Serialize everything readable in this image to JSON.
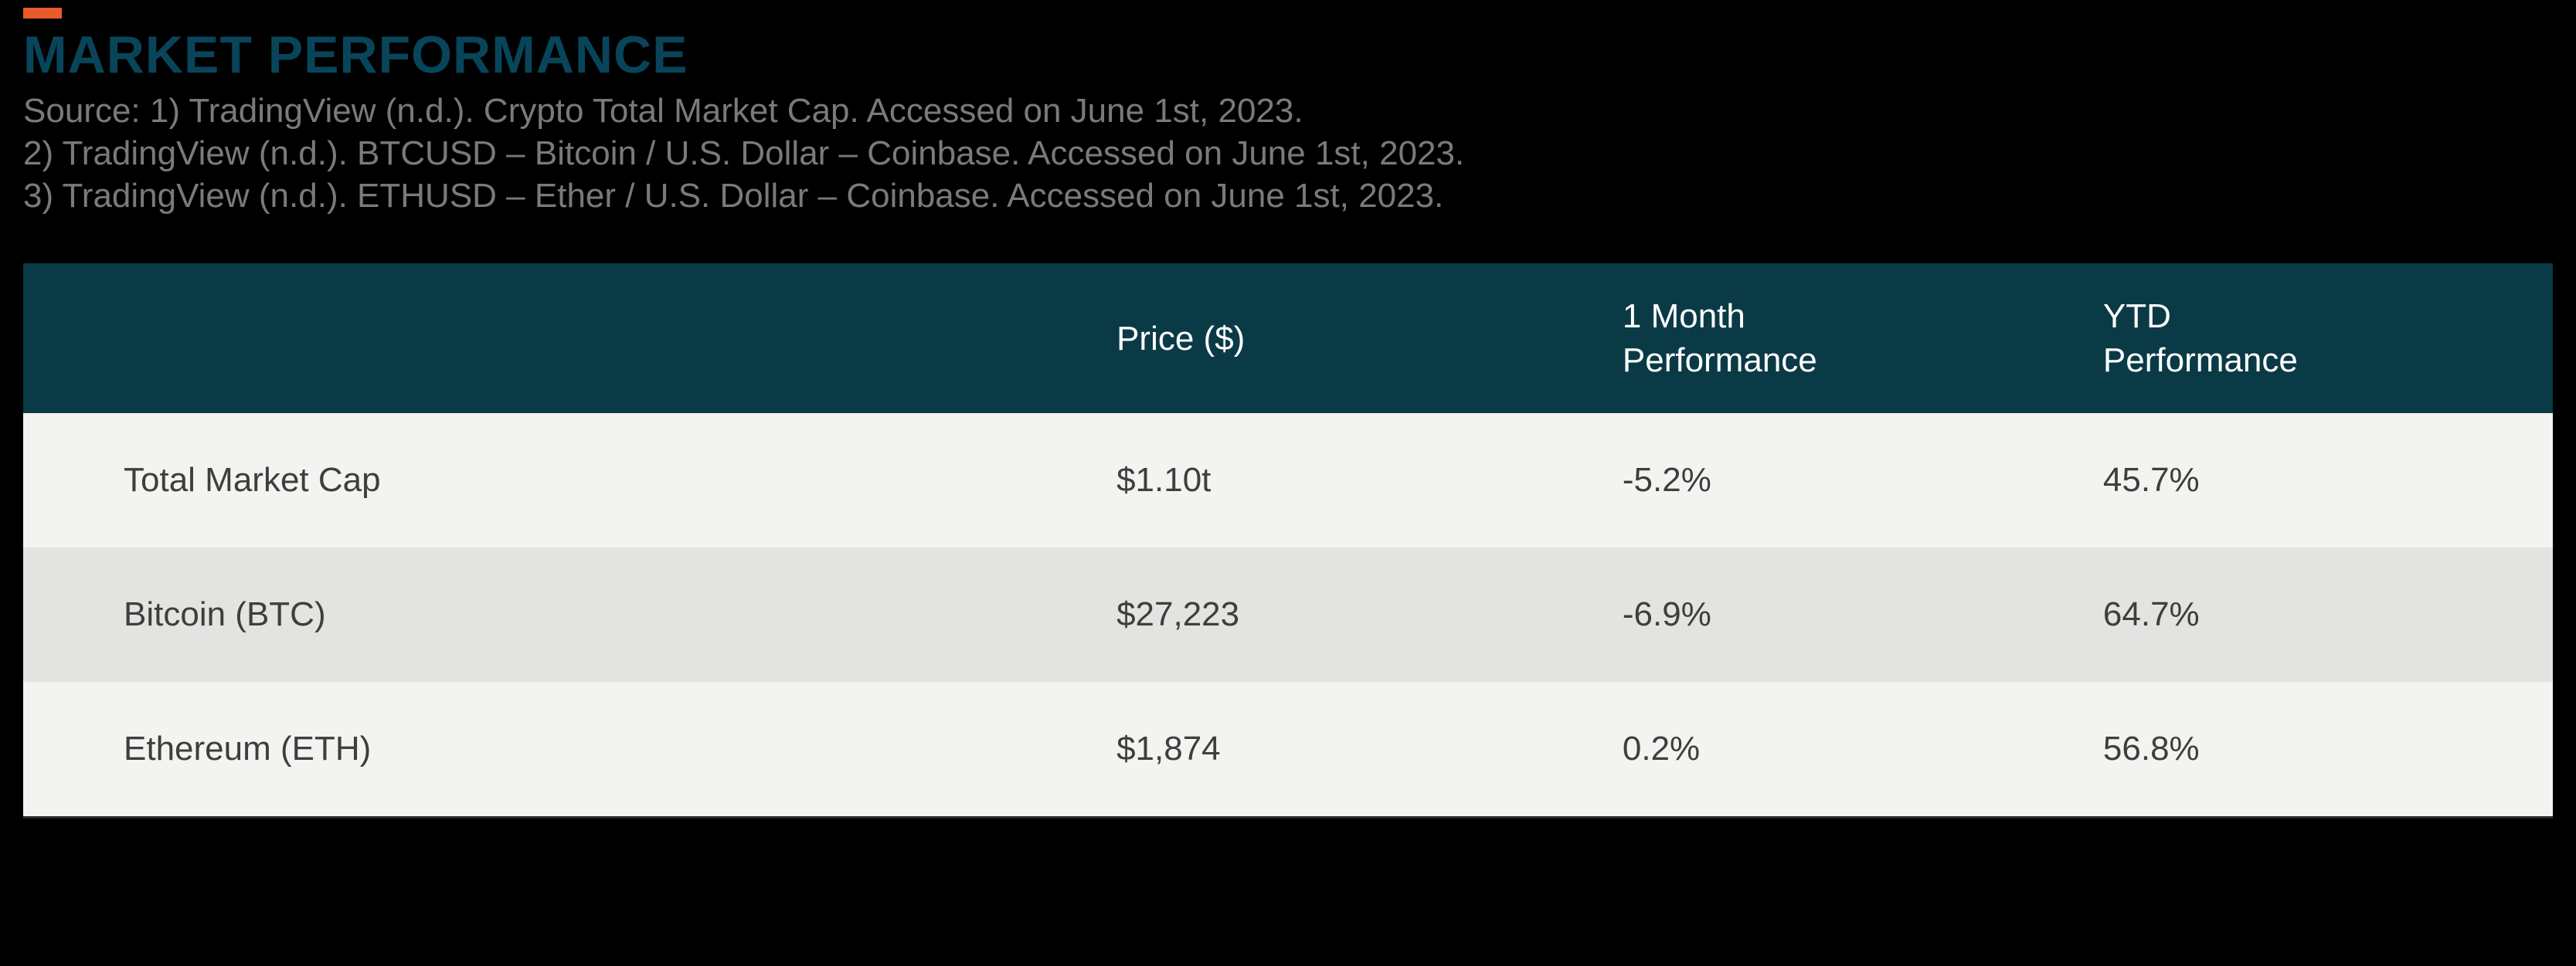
{
  "accent_color": "#e85b2a",
  "title": "MARKET PERFORMANCE",
  "title_color": "#08455a",
  "title_fontsize": 68,
  "source_lines": [
    "Source: 1) TradingView (n.d.). Crypto Total Market Cap. Accessed on June 1st, 2023.",
    "2) TradingView (n.d.). BTCUSD – Bitcoin / U.S. Dollar – Coinbase. Accessed on June 1st, 2023.",
    "3) TradingView (n.d.). ETHUSD – Ether / U.S. Dollar – Coinbase. Accessed on June 1st, 2023."
  ],
  "source_color": "#7a7a78",
  "source_fontsize": 44,
  "table": {
    "type": "table",
    "header_bg": "#0a3a46",
    "header_text_color": "#ffffff",
    "header_fontsize": 44,
    "row_odd_bg": "#f3f3f2",
    "row_even_bg": "#e3e3e2",
    "cell_text_color": "#3e3e3c",
    "cell_fontsize": 44,
    "border_bottom_color": "#2a2a2a",
    "columns": [
      {
        "label_line1": "",
        "label_line2": "",
        "width_pct": 42
      },
      {
        "label_line1": "Price ($)",
        "label_line2": "",
        "width_pct": 20
      },
      {
        "label_line1": "1 Month",
        "label_line2": "Performance",
        "width_pct": 19
      },
      {
        "label_line1": "YTD",
        "label_line2": "Performance",
        "width_pct": 19
      }
    ],
    "rows": [
      {
        "name": "Total Market Cap",
        "price": "$1.10t",
        "month_perf": "-5.2%",
        "ytd_perf": "45.7%"
      },
      {
        "name": "Bitcoin (BTC)",
        "price": "$27,223",
        "month_perf": "-6.9%",
        "ytd_perf": "64.7%"
      },
      {
        "name": "Ethereum (ETH)",
        "price": "$1,874",
        "month_perf": "0.2%",
        "ytd_perf": "56.8%"
      }
    ]
  },
  "background_color": "#000000"
}
